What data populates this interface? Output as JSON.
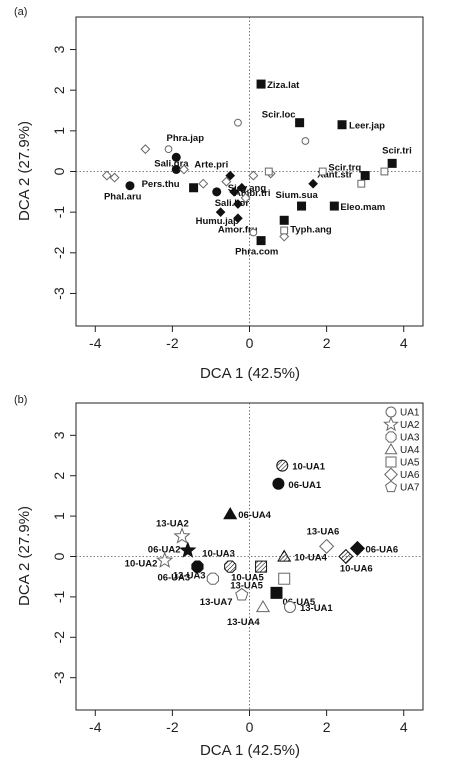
{
  "chart_data": [
    {
      "type": "scatter",
      "panel": "(a)",
      "xlabel": "DCA 1 (42.5%)",
      "ylabel": "DCA 2 (27.9%)",
      "xlim": [
        -4.5,
        4.5
      ],
      "ylim": [
        -3.8,
        3.8
      ],
      "xticks": [
        -4,
        -2,
        0,
        2,
        4
      ],
      "yticks": [
        -3,
        -2,
        -1,
        0,
        1,
        2,
        3
      ],
      "grid": false,
      "reference_lines": "dotted at x=0 and y=0",
      "points": [
        {
          "x": 0.3,
          "y": 2.15,
          "marker": "square-filled",
          "label": "Ziza.lat"
        },
        {
          "x": 1.3,
          "y": 1.2,
          "marker": "square-filled",
          "label": "Scir.loc"
        },
        {
          "x": 2.4,
          "y": 1.15,
          "marker": "square-filled",
          "label": "Leer.jap"
        },
        {
          "x": 3.7,
          "y": 0.2,
          "marker": "square-filled",
          "label": "Scir.tri"
        },
        {
          "x": 3.0,
          "y": -0.1,
          "marker": "square-filled",
          "label": "Scir.trq"
        },
        {
          "x": -2.1,
          "y": 0.55,
          "marker": "open-circle",
          "label": "Phra.jap"
        },
        {
          "x": -1.9,
          "y": 0.35,
          "marker": "circle-filled",
          "label": ""
        },
        {
          "x": -1.9,
          "y": 0.05,
          "marker": "circle-filled",
          "label": "Sali.gra"
        },
        {
          "x": -3.1,
          "y": -0.35,
          "marker": "circle-filled",
          "label": "Phal.aru"
        },
        {
          "x": -1.45,
          "y": -0.4,
          "marker": "square-filled",
          "label": "Pers.thu"
        },
        {
          "x": -0.85,
          "y": -0.5,
          "marker": "circle-filled",
          "label": "Sali.kor"
        },
        {
          "x": -0.75,
          "y": -1.0,
          "marker": "diamond-filled",
          "label": "Humu.jap"
        },
        {
          "x": -0.5,
          "y": -0.1,
          "marker": "diamond-filled",
          "label": "Arte.pri"
        },
        {
          "x": -0.2,
          "y": -0.4,
          "marker": "diamond-filled",
          "label": "Sicy.ang"
        },
        {
          "x": -0.4,
          "y": -0.5,
          "marker": "diamond-filled",
          "label": "Ambr.tri"
        },
        {
          "x": -0.3,
          "y": -0.8,
          "marker": "diamond-filled",
          "label": ""
        },
        {
          "x": 1.65,
          "y": -0.3,
          "marker": "diamond-filled",
          "label": "Xant.str"
        },
        {
          "x": 1.35,
          "y": -0.85,
          "marker": "square-filled",
          "label": "Sium.sua"
        },
        {
          "x": 2.2,
          "y": -0.85,
          "marker": "square-filled",
          "label": "Eleo.mam"
        },
        {
          "x": 0.9,
          "y": -1.2,
          "marker": "square-filled",
          "label": "Typh.ang"
        },
        {
          "x": -0.3,
          "y": -1.15,
          "marker": "diamond-filled",
          "label": "Amor.fru"
        },
        {
          "x": 0.3,
          "y": -1.7,
          "marker": "square-filled",
          "label": "Phra.com"
        },
        {
          "x": -0.3,
          "y": 1.2,
          "marker": "open-circle",
          "label": ""
        },
        {
          "x": 1.45,
          "y": 0.75,
          "marker": "open-circle",
          "label": ""
        },
        {
          "x": -2.7,
          "y": 0.55,
          "marker": "open-diamond",
          "label": ""
        },
        {
          "x": -3.7,
          "y": -0.1,
          "marker": "open-diamond",
          "label": ""
        },
        {
          "x": -3.5,
          "y": -0.15,
          "marker": "open-diamond",
          "label": ""
        },
        {
          "x": -1.7,
          "y": 0.05,
          "marker": "open-diamond",
          "label": ""
        },
        {
          "x": -1.2,
          "y": -0.3,
          "marker": "open-diamond",
          "label": ""
        },
        {
          "x": -0.6,
          "y": -0.25,
          "marker": "open-diamond",
          "label": ""
        },
        {
          "x": -0.1,
          "y": -0.65,
          "marker": "open-diamond",
          "label": ""
        },
        {
          "x": 0.1,
          "y": -0.1,
          "marker": "open-diamond",
          "label": ""
        },
        {
          "x": 0.55,
          "y": -0.05,
          "marker": "open-diamond",
          "label": ""
        },
        {
          "x": 0.9,
          "y": -1.6,
          "marker": "open-diamond",
          "label": ""
        },
        {
          "x": 0.1,
          "y": -1.5,
          "marker": "open-circle",
          "label": ""
        },
        {
          "x": 0.9,
          "y": -1.45,
          "marker": "open-square",
          "label": ""
        },
        {
          "x": 0.5,
          "y": 0.0,
          "marker": "open-square",
          "label": ""
        },
        {
          "x": 1.9,
          "y": 0.0,
          "marker": "open-square",
          "label": ""
        },
        {
          "x": 2.9,
          "y": -0.3,
          "marker": "open-square",
          "label": ""
        },
        {
          "x": 3.5,
          "y": 0.0,
          "marker": "open-square",
          "label": ""
        }
      ]
    },
    {
      "type": "scatter",
      "panel": "(b)",
      "xlabel": "DCA 1 (42.5%)",
      "ylabel": "DCA 2 (27.9%)",
      "xlim": [
        -4.5,
        4.5
      ],
      "ylim": [
        -3.8,
        3.8
      ],
      "xticks": [
        -4,
        -2,
        0,
        2,
        4
      ],
      "yticks": [
        -3,
        -2,
        -1,
        0,
        1,
        2,
        3
      ],
      "grid": false,
      "reference_lines": "dotted at x=0 and y=0",
      "legend": {
        "placement": "top-right",
        "entries": [
          {
            "marker": "circle",
            "label": "UA1"
          },
          {
            "marker": "star",
            "label": "UA2"
          },
          {
            "marker": "octagon",
            "label": "UA3"
          },
          {
            "marker": "triangle",
            "label": "UA4"
          },
          {
            "marker": "square",
            "label": "UA5"
          },
          {
            "marker": "diamond",
            "label": "UA6"
          },
          {
            "marker": "pentagon",
            "label": "UA7"
          }
        ]
      },
      "points": [
        {
          "x": 0.85,
          "y": 2.25,
          "marker": "circle",
          "fill": "hatched",
          "label": "10-UA1"
        },
        {
          "x": 0.75,
          "y": 1.8,
          "marker": "circle",
          "fill": "filled",
          "label": "06-UA1"
        },
        {
          "x": -0.5,
          "y": 1.05,
          "marker": "triangle",
          "fill": "filled",
          "label": "06-UA4"
        },
        {
          "x": -1.75,
          "y": 0.5,
          "marker": "star",
          "fill": "open",
          "label": "13-UA2"
        },
        {
          "x": -1.6,
          "y": 0.15,
          "marker": "star",
          "fill": "filled",
          "label": "06-UA2"
        },
        {
          "x": -2.2,
          "y": -0.1,
          "marker": "star",
          "fill": "open",
          "label": "10-UA2"
        },
        {
          "x": -0.5,
          "y": -0.25,
          "marker": "octagon",
          "fill": "hatched",
          "label": "10-UA3"
        },
        {
          "x": -1.35,
          "y": -0.25,
          "marker": "octagon",
          "fill": "filled",
          "label": "06-UA3"
        },
        {
          "x": -0.95,
          "y": -0.55,
          "marker": "octagon",
          "fill": "open",
          "label": "13-UA3"
        },
        {
          "x": 0.3,
          "y": -0.25,
          "marker": "square",
          "fill": "hatched",
          "label": "10-UA5"
        },
        {
          "x": 0.9,
          "y": -0.55,
          "marker": "square",
          "fill": "open",
          "label": "13-UA5"
        },
        {
          "x": 0.7,
          "y": -0.9,
          "marker": "square",
          "fill": "filled",
          "label": "06-UA5"
        },
        {
          "x": 0.9,
          "y": 0.0,
          "marker": "triangle",
          "fill": "hatched",
          "label": "10-UA4"
        },
        {
          "x": 0.35,
          "y": -1.25,
          "marker": "triangle",
          "fill": "open",
          "label": "13-UA4"
        },
        {
          "x": -0.2,
          "y": -0.95,
          "marker": "pentagon",
          "fill": "open",
          "label": "13-UA7"
        },
        {
          "x": 1.05,
          "y": -1.25,
          "marker": "circle",
          "fill": "open",
          "label": "13-UA1"
        },
        {
          "x": 2.0,
          "y": 0.25,
          "marker": "diamond",
          "fill": "open",
          "label": "13-UA6"
        },
        {
          "x": 2.8,
          "y": 0.2,
          "marker": "diamond",
          "fill": "filled",
          "label": "06-UA6"
        },
        {
          "x": 2.5,
          "y": 0.0,
          "marker": "diamond",
          "fill": "hatched",
          "label": "10-UA6"
        }
      ]
    }
  ]
}
